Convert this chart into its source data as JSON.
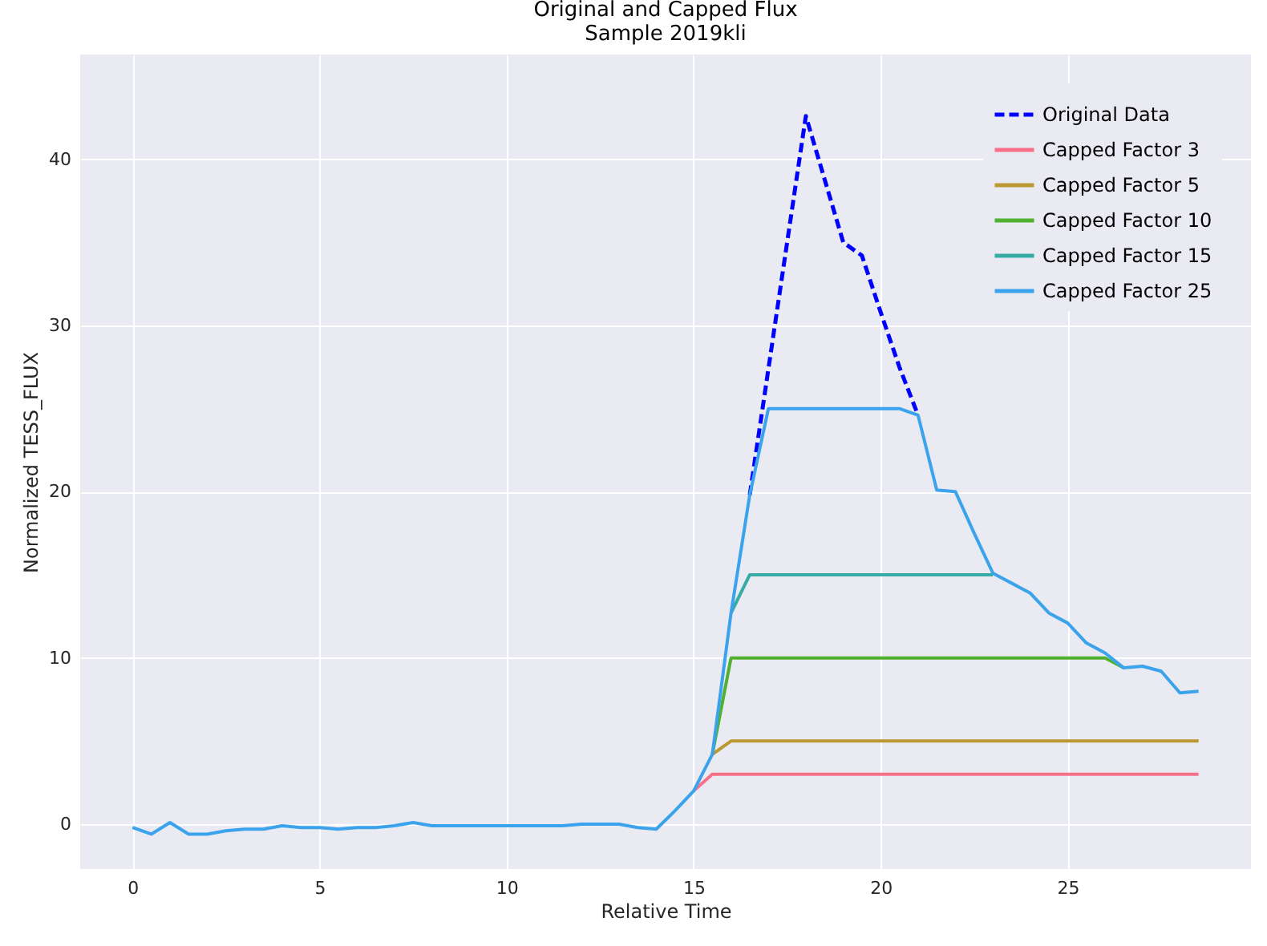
{
  "chart_data": {
    "type": "line",
    "title": "Original and Capped Flux",
    "subtitle": "Sample 2019kli",
    "xlabel": "Relative Time",
    "ylabel": "Normalized TESS_FLUX",
    "x": [
      0,
      0.5,
      1,
      1.5,
      2,
      2.5,
      3,
      3.5,
      4,
      4.5,
      5,
      5.5,
      6,
      6.5,
      7,
      7.5,
      8,
      8.5,
      9,
      9.5,
      10,
      10.5,
      11,
      11.5,
      12,
      12.5,
      13,
      13.5,
      14,
      14.5,
      15,
      15.5,
      16,
      16.5,
      17,
      17.5,
      18,
      18.5,
      19,
      19.5,
      20,
      20.5,
      21,
      21.5,
      22,
      22.5,
      23,
      23.5,
      24,
      24.5,
      25,
      25.5,
      26,
      26.5,
      27,
      27.5,
      28,
      28.5
    ],
    "series": [
      {
        "name": "Original Data",
        "color": "#0000ff",
        "line_style": "dashed",
        "values": [
          null,
          null,
          null,
          null,
          null,
          null,
          null,
          null,
          null,
          null,
          null,
          null,
          null,
          null,
          null,
          null,
          null,
          null,
          null,
          null,
          null,
          null,
          null,
          null,
          null,
          null,
          null,
          null,
          null,
          null,
          null,
          null,
          null,
          19.8,
          27.4,
          35.0,
          42.6,
          38.8,
          35.0,
          34.2,
          30.8,
          27.5,
          24.6,
          null,
          null,
          null,
          null,
          null,
          null,
          null,
          null,
          null,
          null,
          null,
          null,
          null,
          null,
          null
        ]
      },
      {
        "name": "Capped Factor 3",
        "color": "#f77189",
        "line_style": "solid",
        "values": [
          null,
          null,
          null,
          null,
          null,
          null,
          null,
          null,
          null,
          null,
          null,
          null,
          null,
          null,
          null,
          null,
          null,
          null,
          null,
          null,
          null,
          null,
          null,
          null,
          null,
          null,
          null,
          null,
          null,
          null,
          2.0,
          3,
          3,
          3,
          3,
          3,
          3,
          3,
          3,
          3,
          3,
          3,
          3,
          3,
          3,
          3,
          3,
          3,
          3,
          3,
          3,
          3,
          3,
          3,
          3,
          3,
          3,
          3
        ]
      },
      {
        "name": "Capped Factor 5",
        "color": "#bb9832",
        "line_style": "solid",
        "values": [
          null,
          null,
          null,
          null,
          null,
          null,
          null,
          null,
          null,
          null,
          null,
          null,
          null,
          null,
          null,
          null,
          null,
          null,
          null,
          null,
          null,
          null,
          null,
          null,
          null,
          null,
          null,
          null,
          null,
          null,
          null,
          4.2,
          5,
          5,
          5,
          5,
          5,
          5,
          5,
          5,
          5,
          5,
          5,
          5,
          5,
          5,
          5,
          5,
          5,
          5,
          5,
          5,
          5,
          5,
          5,
          5,
          5,
          5
        ]
      },
      {
        "name": "Capped Factor 10",
        "color": "#50b131",
        "line_style": "solid",
        "values": [
          null,
          null,
          null,
          null,
          null,
          null,
          null,
          null,
          null,
          null,
          null,
          null,
          null,
          null,
          null,
          null,
          null,
          null,
          null,
          null,
          null,
          null,
          null,
          null,
          null,
          null,
          null,
          null,
          null,
          null,
          null,
          4.2,
          10,
          10,
          10,
          10,
          10,
          10,
          10,
          10,
          10,
          10,
          10,
          10,
          10,
          10,
          10,
          10,
          10,
          10,
          10,
          10,
          10,
          9.4,
          null,
          null,
          null,
          null
        ]
      },
      {
        "name": "Capped Factor 15",
        "color": "#36ada4",
        "line_style": "solid",
        "values": [
          null,
          null,
          null,
          null,
          null,
          null,
          null,
          null,
          null,
          null,
          null,
          null,
          null,
          null,
          null,
          null,
          null,
          null,
          null,
          null,
          null,
          null,
          null,
          null,
          null,
          null,
          null,
          null,
          null,
          null,
          null,
          null,
          12.7,
          15,
          15,
          15,
          15,
          15,
          15,
          15,
          15,
          15,
          15,
          15,
          15,
          15,
          15,
          null,
          null,
          null,
          null,
          null,
          null,
          null,
          null,
          null,
          null,
          null
        ]
      },
      {
        "name": "Capped Factor 25",
        "color": "#3ba3ec",
        "line_style": "solid",
        "values": [
          -0.2,
          -0.6,
          0.1,
          -0.6,
          -0.6,
          -0.4,
          -0.3,
          -0.3,
          -0.1,
          -0.2,
          -0.2,
          -0.3,
          -0.2,
          -0.2,
          -0.1,
          0.1,
          -0.1,
          -0.1,
          -0.1,
          -0.1,
          -0.1,
          -0.1,
          -0.1,
          -0.1,
          0,
          0,
          0,
          -0.2,
          -0.3,
          0.8,
          2.0,
          4.2,
          12.7,
          19.8,
          25,
          25,
          25,
          25,
          25,
          25,
          25,
          25,
          24.6,
          20.1,
          20.0,
          17.5,
          15.1,
          14.5,
          13.9,
          12.7,
          12.1,
          10.9,
          10.3,
          9.4,
          9.5,
          9.2,
          7.9,
          8.0
        ]
      }
    ],
    "xlim": [
      -1.4,
      29.9
    ],
    "ylim": [
      -2.7,
      46.3
    ],
    "xticks": [
      0,
      5,
      10,
      15,
      20,
      25
    ],
    "yticks": [
      0,
      10,
      20,
      30,
      40
    ],
    "grid": true,
    "legend": "top right",
    "marker": "none"
  }
}
